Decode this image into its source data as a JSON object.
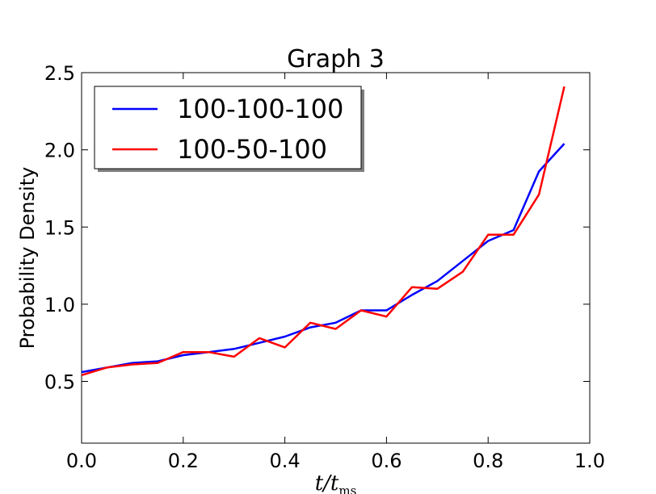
{
  "chart_data": {
    "type": "line",
    "title": "Graph 3",
    "xlabel": "t/t_ms",
    "xlabel_main": "t/t",
    "xlabel_sub": "ms",
    "ylabel": "Probability Density",
    "xlim": [
      0.0,
      1.0
    ],
    "ylim": [
      0.1,
      2.5
    ],
    "xticks": [
      0.0,
      0.2,
      0.4,
      0.6,
      0.8,
      1.0
    ],
    "xtick_labels": [
      "0.0",
      "0.2",
      "0.4",
      "0.6",
      "0.8",
      "1.0"
    ],
    "yticks": [
      0.5,
      1.0,
      1.5,
      2.0,
      2.5
    ],
    "ytick_labels": [
      "0.5",
      "1.0",
      "1.5",
      "2.0",
      "2.5"
    ],
    "grid": false,
    "legend_position": "top-left",
    "x": [
      0.0,
      0.05,
      0.1,
      0.15,
      0.2,
      0.25,
      0.3,
      0.35,
      0.4,
      0.45,
      0.5,
      0.55,
      0.6,
      0.65,
      0.7,
      0.75,
      0.8,
      0.85,
      0.9,
      0.95
    ],
    "series": [
      {
        "name": "100-100-100",
        "color": "#0000ff",
        "values": [
          0.56,
          0.59,
          0.62,
          0.63,
          0.67,
          0.69,
          0.71,
          0.75,
          0.79,
          0.85,
          0.88,
          0.96,
          0.96,
          1.06,
          1.15,
          1.28,
          1.41,
          1.48,
          1.86,
          2.04
        ]
      },
      {
        "name": "100-50-100",
        "color": "#ff0000",
        "values": [
          0.54,
          0.59,
          0.61,
          0.62,
          0.69,
          0.69,
          0.66,
          0.78,
          0.72,
          0.88,
          0.84,
          0.96,
          0.92,
          1.11,
          1.1,
          1.21,
          1.45,
          1.45,
          1.71,
          2.41
        ]
      }
    ]
  }
}
